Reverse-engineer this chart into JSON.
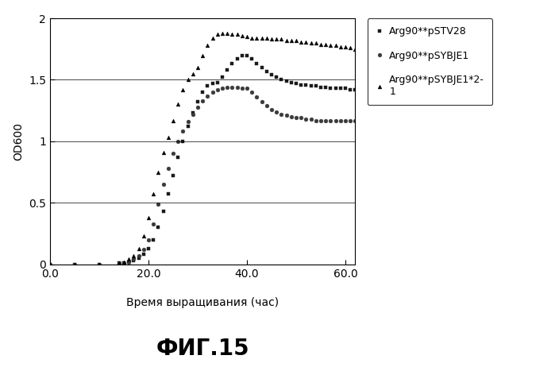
{
  "title": "ФИГ.15",
  "xlabel": "Время выращивания (час)",
  "ylabel": "OD600",
  "xlim": [
    0.0,
    62.0
  ],
  "ylim": [
    0,
    2.0
  ],
  "xticks": [
    0.0,
    20.0,
    40.0,
    60.0
  ],
  "yticks": [
    0,
    0.5,
    1.0,
    1.5,
    2
  ],
  "legend": [
    "Arg90**pSTV28",
    "Arg90**pSYBJE1",
    "Arg90**pSYBJE1*2-\n1"
  ],
  "series": {
    "pSTV28": {
      "x": [
        0,
        5,
        10,
        14,
        15,
        16,
        17,
        18,
        19,
        20,
        21,
        22,
        23,
        24,
        25,
        26,
        27,
        28,
        29,
        30,
        31,
        32,
        33,
        34,
        35,
        36,
        37,
        38,
        39,
        40,
        41,
        42,
        43,
        44,
        45,
        46,
        47,
        48,
        49,
        50,
        51,
        52,
        53,
        54,
        55,
        56,
        57,
        58,
        59,
        60,
        61,
        62
      ],
      "y": [
        0,
        0,
        0,
        0.01,
        0.01,
        0.02,
        0.03,
        0.05,
        0.08,
        0.13,
        0.2,
        0.3,
        0.43,
        0.57,
        0.72,
        0.87,
        1.0,
        1.12,
        1.23,
        1.32,
        1.4,
        1.45,
        1.47,
        1.48,
        1.52,
        1.58,
        1.63,
        1.67,
        1.7,
        1.7,
        1.67,
        1.63,
        1.6,
        1.57,
        1.54,
        1.52,
        1.5,
        1.49,
        1.48,
        1.47,
        1.46,
        1.46,
        1.45,
        1.45,
        1.44,
        1.44,
        1.43,
        1.43,
        1.43,
        1.43,
        1.42,
        1.42
      ],
      "marker": "s",
      "color": "#1a1a1a",
      "markersize": 3.5
    },
    "pSYBJE1": {
      "x": [
        0,
        5,
        10,
        14,
        15,
        16,
        17,
        18,
        19,
        20,
        21,
        22,
        23,
        24,
        25,
        26,
        27,
        28,
        29,
        30,
        31,
        32,
        33,
        34,
        35,
        36,
        37,
        38,
        39,
        40,
        41,
        42,
        43,
        44,
        45,
        46,
        47,
        48,
        49,
        50,
        51,
        52,
        53,
        54,
        55,
        56,
        57,
        58,
        59,
        60,
        61,
        62
      ],
      "y": [
        0,
        0,
        0,
        0.01,
        0.01,
        0.02,
        0.04,
        0.07,
        0.12,
        0.2,
        0.33,
        0.49,
        0.65,
        0.78,
        0.9,
        1.0,
        1.08,
        1.16,
        1.22,
        1.28,
        1.33,
        1.37,
        1.4,
        1.42,
        1.43,
        1.44,
        1.44,
        1.44,
        1.43,
        1.43,
        1.4,
        1.36,
        1.32,
        1.29,
        1.26,
        1.24,
        1.22,
        1.21,
        1.2,
        1.19,
        1.19,
        1.18,
        1.18,
        1.17,
        1.17,
        1.17,
        1.17,
        1.17,
        1.17,
        1.17,
        1.17,
        1.17
      ],
      "marker": "o",
      "color": "#3a3a3a",
      "markersize": 3.5
    },
    "pSYBJE1x2": {
      "x": [
        0,
        5,
        10,
        14,
        15,
        16,
        17,
        18,
        19,
        20,
        21,
        22,
        23,
        24,
        25,
        26,
        27,
        28,
        29,
        30,
        31,
        32,
        33,
        34,
        35,
        36,
        37,
        38,
        39,
        40,
        41,
        42,
        43,
        44,
        45,
        46,
        47,
        48,
        49,
        50,
        51,
        52,
        53,
        54,
        55,
        56,
        57,
        58,
        59,
        60,
        61,
        62
      ],
      "y": [
        0,
        0,
        0,
        0.01,
        0.02,
        0.04,
        0.07,
        0.13,
        0.23,
        0.38,
        0.57,
        0.75,
        0.91,
        1.03,
        1.17,
        1.3,
        1.42,
        1.5,
        1.55,
        1.6,
        1.7,
        1.78,
        1.84,
        1.87,
        1.88,
        1.88,
        1.87,
        1.87,
        1.86,
        1.85,
        1.84,
        1.84,
        1.84,
        1.84,
        1.83,
        1.83,
        1.83,
        1.82,
        1.82,
        1.82,
        1.81,
        1.81,
        1.8,
        1.8,
        1.79,
        1.79,
        1.78,
        1.78,
        1.77,
        1.77,
        1.76,
        1.75
      ],
      "marker": "^",
      "color": "#000000",
      "markersize": 3.5
    }
  }
}
